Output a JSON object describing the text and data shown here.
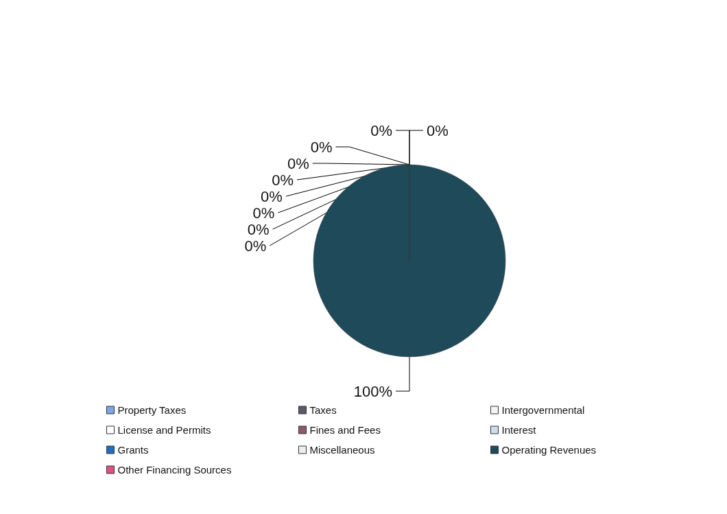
{
  "chart_data": {
    "type": "pie",
    "categories": [
      "Property Taxes",
      "Taxes",
      "Intergovernmental",
      "License and Permits",
      "Fines and Fees",
      "Interest",
      "Grants",
      "Miscellaneous",
      "Operating Revenues",
      "Other Financing Sources"
    ],
    "values": [
      0,
      0,
      0,
      0,
      0,
      0,
      0,
      0,
      100,
      0
    ],
    "value_labels": [
      "0%",
      "0%",
      "0%",
      "0%",
      "0%",
      "0%",
      "0%",
      "0%",
      "100%",
      "0%"
    ],
    "colors": [
      "#7ea6e0",
      "#5a5a6a",
      "#f4f4f4",
      "#ffffff",
      "#8a5a70",
      "#cfdcf0",
      "#1f6fc0",
      "#eeeeee",
      "#1f4a5a",
      "#e05080"
    ],
    "legend": "bottom"
  }
}
